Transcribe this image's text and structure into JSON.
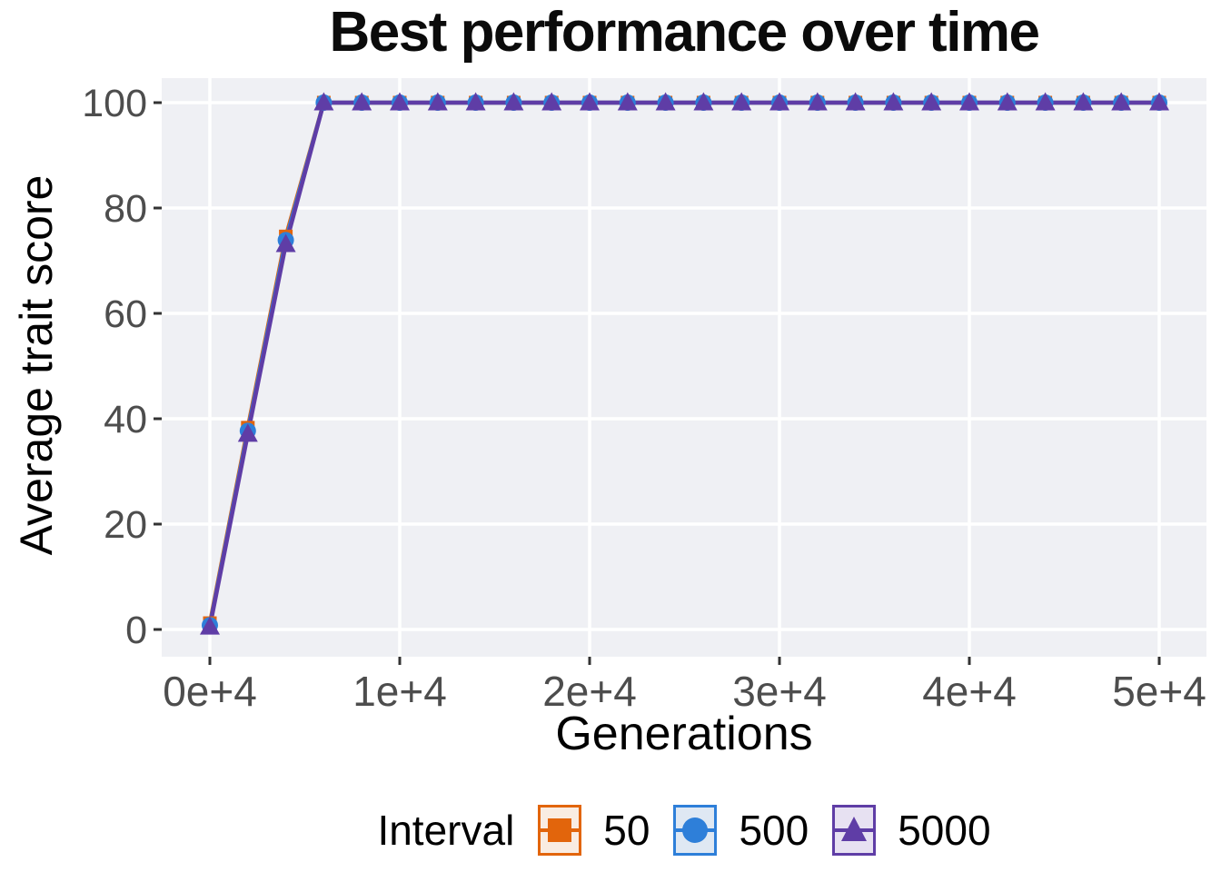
{
  "title": "Best performance over time",
  "axes": {
    "x_title": "Generations",
    "y_title": "Average trait score",
    "x_tick_labels": [
      "0e+4",
      "1e+4",
      "2e+4",
      "3e+4",
      "4e+4",
      "5e+4"
    ],
    "y_tick_labels": [
      "0",
      "20",
      "40",
      "60",
      "80",
      "100"
    ]
  },
  "legend": {
    "title": "Interval",
    "labels": [
      "50",
      "500",
      "5000"
    ]
  },
  "colors": {
    "panel_bg": "#EFF0F4",
    "gridline": "#FFFFFF",
    "tick": "#333333",
    "tick_label": "#4D4D4D",
    "text": "#000000",
    "series_orange": "#E2650C",
    "series_blue": "#2E7FD9",
    "series_purple": "#5F3DA6"
  },
  "chart_data": {
    "type": "line",
    "title": "Best performance over time",
    "xlabel": "Generations",
    "ylabel": "Average trait score",
    "legend_title": "Interval",
    "legend_position": "bottom",
    "grid": "major-only",
    "panel_bg": "#EFF0F4",
    "xlim": [
      0,
      50000
    ],
    "ylim": [
      0,
      100
    ],
    "x_ticks": [
      0,
      10000,
      20000,
      30000,
      40000,
      50000
    ],
    "x_tick_labels": [
      "0e+4",
      "1e+4",
      "2e+4",
      "3e+4",
      "4e+4",
      "5e+4"
    ],
    "y_ticks": [
      0,
      20,
      40,
      60,
      80,
      100
    ],
    "x": [
      0,
      2000,
      4000,
      6000,
      8000,
      10000,
      12000,
      14000,
      16000,
      18000,
      20000,
      22000,
      24000,
      26000,
      28000,
      30000,
      32000,
      34000,
      36000,
      38000,
      40000,
      42000,
      44000,
      46000,
      48000,
      50000
    ],
    "series": [
      {
        "name": "50",
        "marker": "square",
        "color": "#E2650C",
        "key_bg": "#F9ECE2",
        "values": [
          1.2,
          38.3,
          74.6,
          100,
          100,
          100,
          100,
          100,
          100,
          100,
          100,
          100,
          100,
          100,
          100,
          100,
          100,
          100,
          100,
          100,
          100,
          100,
          100,
          100,
          100,
          100
        ]
      },
      {
        "name": "500",
        "marker": "circle",
        "color": "#2E7FD9",
        "key_bg": "#DFE8F3",
        "values": [
          0.8,
          37.7,
          73.9,
          100,
          100,
          100,
          100,
          100,
          100,
          100,
          100,
          100,
          100,
          100,
          100,
          100,
          100,
          100,
          100,
          100,
          100,
          100,
          100,
          100,
          100,
          100
        ]
      },
      {
        "name": "5000",
        "marker": "triangle",
        "color": "#5F3DA6",
        "key_bg": "#E7E1F2",
        "values": [
          0.5,
          37.1,
          73.1,
          100,
          100,
          100,
          100,
          100,
          100,
          100,
          100,
          100,
          100,
          100,
          100,
          100,
          100,
          100,
          100,
          100,
          100,
          100,
          100,
          100,
          100,
          100
        ]
      }
    ]
  }
}
